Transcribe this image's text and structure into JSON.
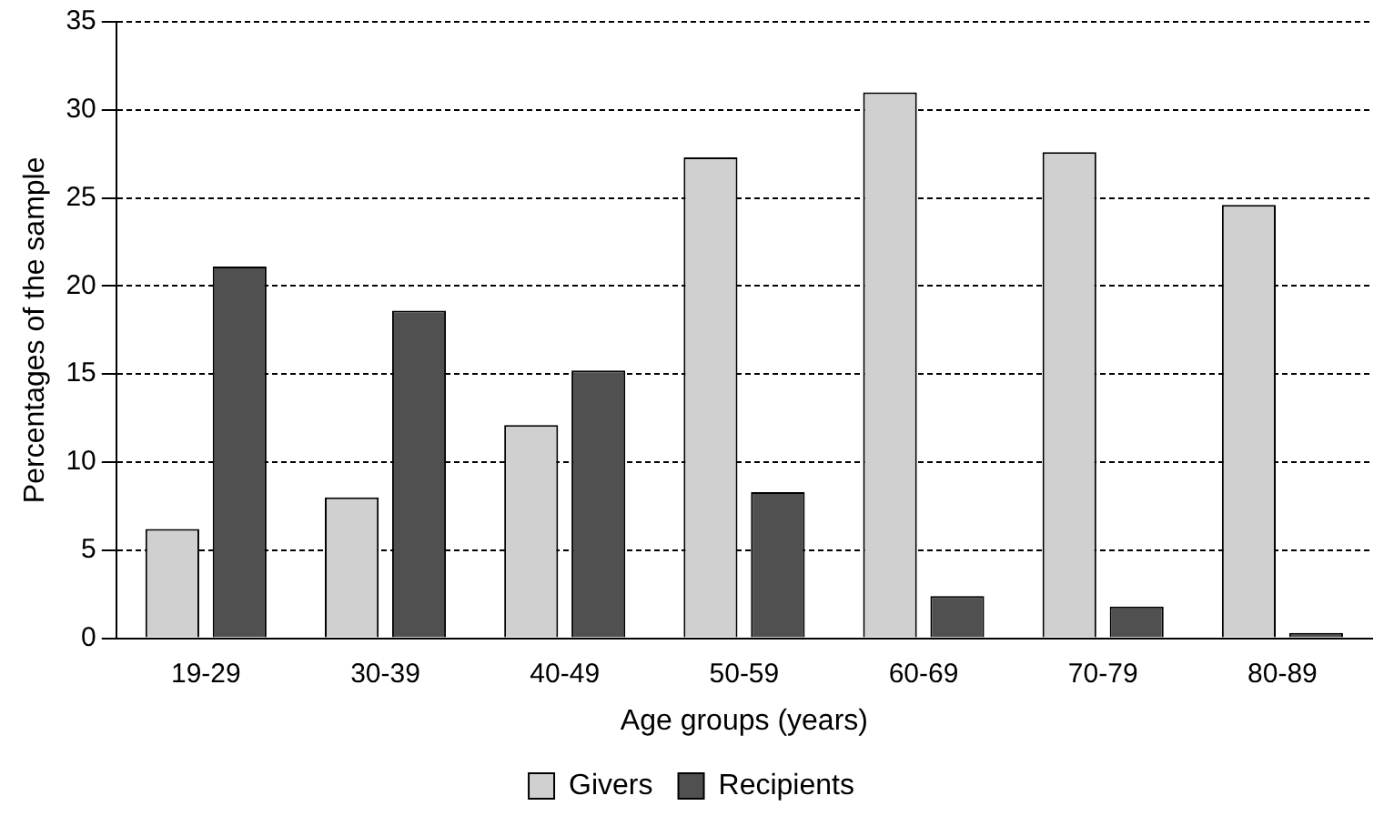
{
  "chart_data": {
    "type": "bar",
    "xlabel": "Age groups (years)",
    "ylabel": "Percentages of the sample",
    "categories": [
      "19-29",
      "30-39",
      "40-49",
      "50-59",
      "60-69",
      "70-79",
      "80-89"
    ],
    "series": [
      {
        "name": "Givers",
        "color": "#d0d0d0",
        "values": [
          6.2,
          8.0,
          12.1,
          27.3,
          31.0,
          27.6,
          24.6
        ]
      },
      {
        "name": "Recipients",
        "color": "#505050",
        "values": [
          21.1,
          18.6,
          15.2,
          8.3,
          2.4,
          1.8,
          0.3
        ]
      }
    ],
    "ylim": [
      0,
      35
    ],
    "yticks": [
      0,
      5,
      10,
      15,
      20,
      25,
      30,
      35
    ],
    "grid": "y",
    "line_style": "dashed",
    "legend": "bottom"
  }
}
